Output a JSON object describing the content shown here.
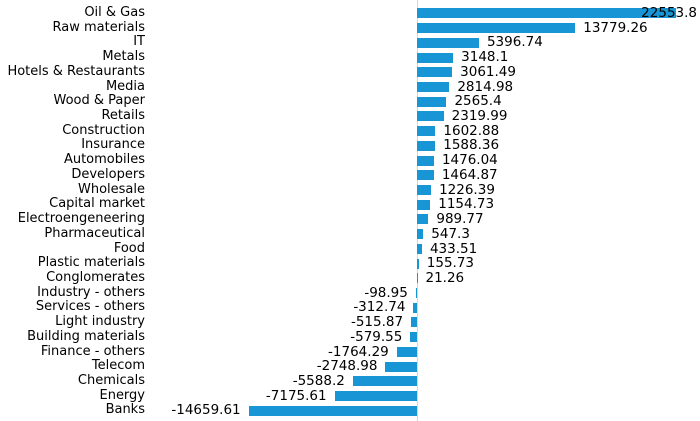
{
  "chart_data": {
    "type": "bar",
    "orientation": "horizontal",
    "title": "",
    "xlabel": "",
    "ylabel": "",
    "grid": false,
    "legend": false,
    "zero_line": true,
    "value_labels_shown": true,
    "categories": [
      "Oil & Gas",
      "Raw materials",
      "IT",
      "Metals",
      "Hotels & Restaurants",
      "Media",
      "Wood & Paper",
      "Retails",
      "Construction",
      "Insurance",
      "Automobiles",
      "Developers",
      "Wholesale",
      "Capital market",
      "Electroengeneering",
      "Pharmaceutical",
      "Food",
      "Plastic materials",
      "Conglomerates",
      "Industry - others",
      "Services - others",
      "Light industry",
      "Building materials",
      "Finance - others",
      "Telecom",
      "Chemicals",
      "Energy",
      "Banks"
    ],
    "values": [
      22553.8,
      13779.26,
      5396.74,
      3148.1,
      3061.49,
      2814.98,
      2565.4,
      2319.99,
      1602.88,
      1588.36,
      1476.04,
      1464.87,
      1226.39,
      1154.73,
      989.77,
      547.3,
      433.51,
      155.73,
      21.26,
      -98.95,
      -312.74,
      -515.87,
      -579.55,
      -1764.29,
      -2748.98,
      -5588.2,
      -7175.61,
      -14659.61
    ],
    "value_labels": [
      "22553.8",
      "13779.26",
      "5396.74",
      "3148.1",
      "3061.49",
      "2814.98",
      "2565.4",
      "2319.99",
      "1602.88",
      "1588.36",
      "1476.04",
      "1464.87",
      "1226.39",
      "1154.73",
      "989.77",
      "547.3",
      "433.51",
      "155.73",
      "21.26",
      "-98.95",
      "-312.74",
      "-515.87",
      "-579.55",
      "-1764.29",
      "-2748.98",
      "-5588.2",
      "-7175.61",
      "-14659.61"
    ],
    "bar_color": "#1795D4",
    "axis_line_color": "#D6D6D6",
    "text_color": "#000000",
    "background_color": "#FFFFFF"
  }
}
